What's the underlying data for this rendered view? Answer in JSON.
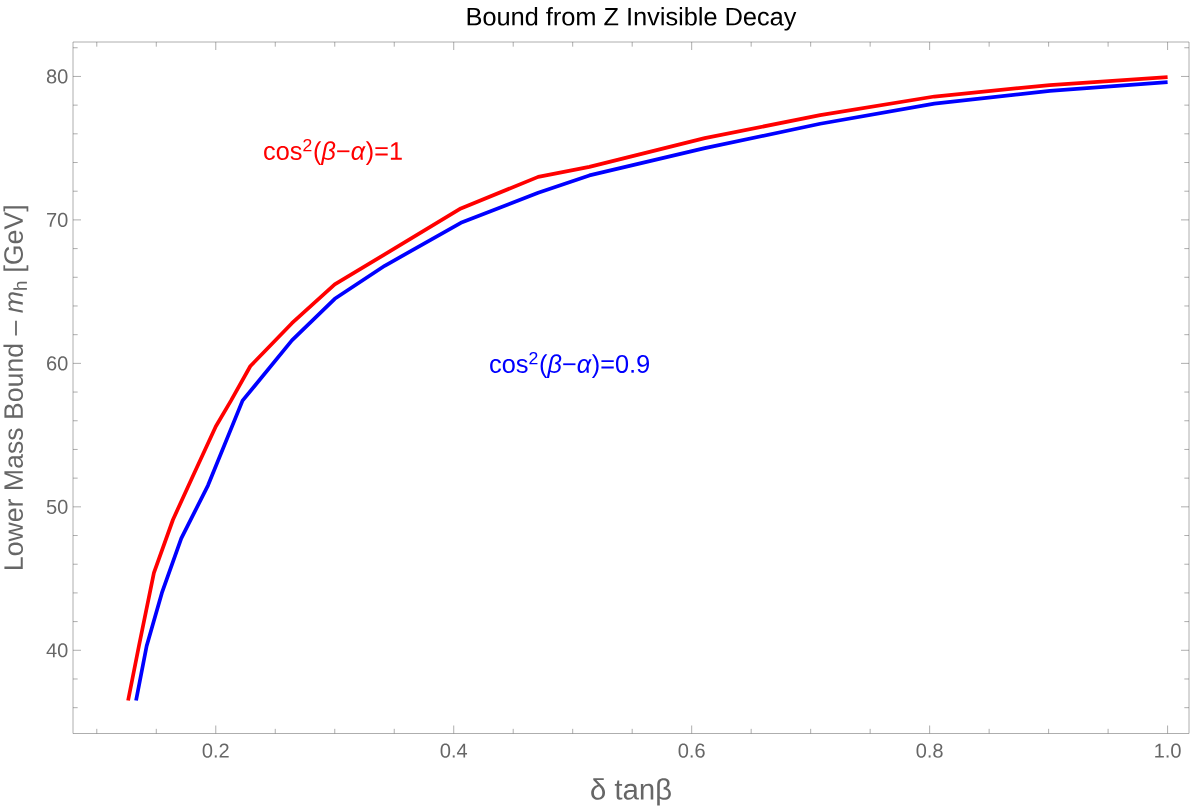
{
  "chart_data": {
    "type": "line",
    "title": "Bound from Z Invisible Decay",
    "xlabel": "δ tanβ",
    "ylabel": "Lower Mass Bound – *m*$_{h}$ [GeV]",
    "series": [
      {
        "name": "cos$^{2}$(*β*−*α*)=1",
        "color": "#ff0000",
        "x": [
          0.1263,
          0.1354,
          0.148,
          0.164,
          0.1805,
          0.2,
          0.2128,
          0.229,
          0.264,
          0.3,
          0.342,
          0.406,
          0.471,
          0.514,
          0.611,
          0.708,
          0.804,
          0.901,
          1.0
        ],
        "values": [
          36.5,
          40.3,
          45.4,
          49.1,
          52.1,
          55.6,
          57.4,
          59.8,
          62.8,
          65.5,
          67.6,
          70.8,
          73.0,
          73.7,
          75.7,
          77.3,
          78.6,
          79.4,
          79.95
        ]
      },
      {
        "name": "cos$^{2}$(*β*−*α*)=0.9",
        "color": "#0000ff",
        "x": [
          0.133,
          0.1419,
          0.1547,
          0.171,
          0.1935,
          0.2225,
          0.264,
          0.3,
          0.342,
          0.406,
          0.471,
          0.514,
          0.611,
          0.708,
          0.804,
          0.901,
          1.0
        ],
        "values": [
          36.5,
          40.3,
          44.0,
          47.8,
          51.5,
          57.4,
          61.6,
          64.5,
          66.8,
          69.8,
          71.9,
          73.1,
          75.0,
          76.7,
          78.1,
          79.0,
          79.6
        ]
      }
    ],
    "xlim": [
      0.08,
      1.018
    ],
    "ylim": [
      34.2,
      82.4
    ],
    "xticks": [
      {
        "value": 0.1,
        "label": null
      },
      {
        "value": 0.15,
        "label": null
      },
      0.2,
      {
        "value": 0.25,
        "label": null
      },
      {
        "value": 0.3,
        "label": null
      },
      {
        "value": 0.35,
        "label": null
      },
      0.4,
      {
        "value": 0.45,
        "label": null
      },
      {
        "value": 0.5,
        "label": null
      },
      {
        "value": 0.55,
        "label": null
      },
      0.6,
      {
        "value": 0.65,
        "label": null
      },
      {
        "value": 0.7,
        "label": null
      },
      {
        "value": 0.75,
        "label": null
      },
      0.8,
      {
        "value": 0.85,
        "label": null
      },
      {
        "value": 0.9,
        "label": null
      },
      {
        "value": 0.95,
        "label": null
      },
      {
        "value": 1.0,
        "label": "1.0"
      }
    ],
    "yticks": [
      {
        "value": 36,
        "label": null
      },
      {
        "value": 38,
        "label": null
      },
      40,
      {
        "value": 42,
        "label": null
      },
      {
        "value": 44,
        "label": null
      },
      {
        "value": 46,
        "label": null
      },
      {
        "value": 48,
        "label": null
      },
      50,
      {
        "value": 52,
        "label": null
      },
      {
        "value": 54,
        "label": null
      },
      {
        "value": 56,
        "label": null
      },
      {
        "value": 58,
        "label": null
      },
      60,
      {
        "value": 62,
        "label": null
      },
      {
        "value": 64,
        "label": null
      },
      {
        "value": 66,
        "label": null
      },
      {
        "value": 68,
        "label": null
      },
      70,
      {
        "value": 72,
        "label": null
      },
      {
        "value": 74,
        "label": null
      },
      {
        "value": 76,
        "label": null
      },
      {
        "value": 78,
        "label": null
      },
      80,
      {
        "value": 82,
        "label": null
      }
    ],
    "grid": false
  }
}
